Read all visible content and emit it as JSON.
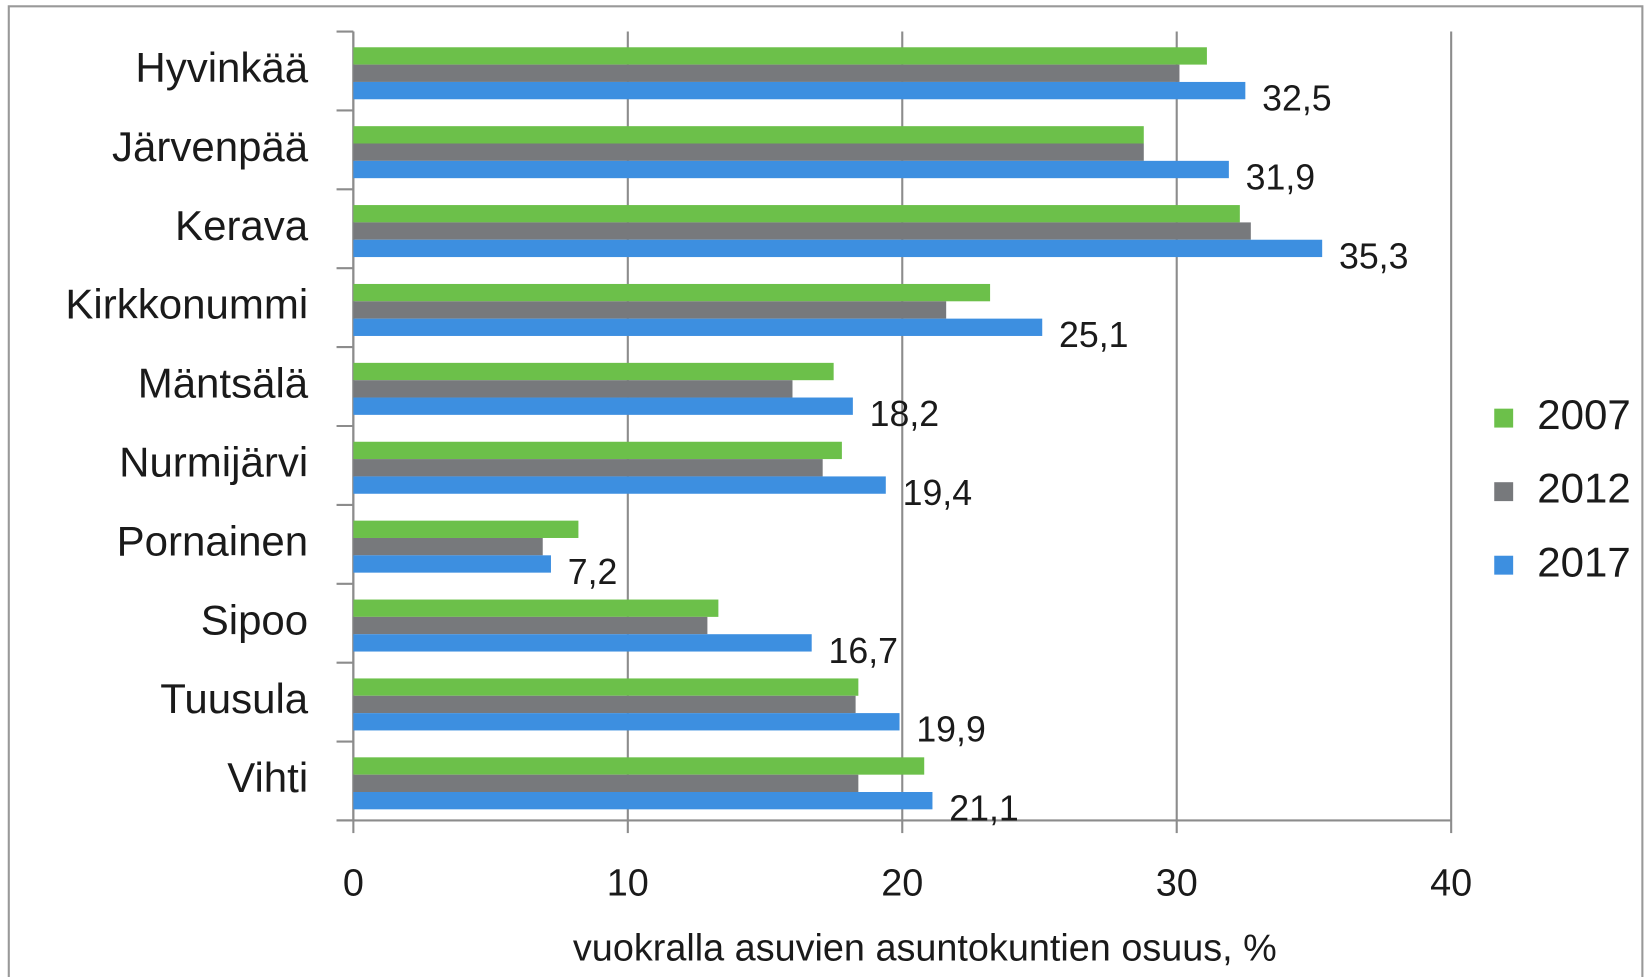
{
  "chart_data": {
    "type": "barh",
    "x_label": "vuokralla asuvien asuntokuntien osuus, %",
    "categories": [
      "Hyvinkää",
      "Järvenpää",
      "Kerava",
      "Kirkkonummi",
      "Mäntsälä",
      "Nurmijärvi",
      "Pornainen",
      "Sipoo",
      "Tuusula",
      "Vihti"
    ],
    "series": [
      {
        "name": "2007",
        "color": "#6cc04a",
        "values": [
          31.1,
          28.8,
          32.3,
          23.2,
          17.5,
          17.8,
          8.2,
          13.3,
          18.4,
          20.8
        ]
      },
      {
        "name": "2012",
        "color": "#77797c",
        "values": [
          30.1,
          28.8,
          32.7,
          21.6,
          16.0,
          17.1,
          6.9,
          12.9,
          18.3,
          18.4
        ]
      },
      {
        "name": "2017",
        "color": "#3d8fe0",
        "values": [
          32.5,
          31.9,
          35.3,
          25.1,
          18.2,
          19.4,
          7.2,
          16.7,
          19.9,
          21.1
        ],
        "value_labels": [
          "32,5",
          "31,9",
          "35,3",
          "25,1",
          "18,2",
          "19,4",
          "7,2",
          "16,7",
          "19,9",
          "21,1"
        ]
      }
    ],
    "xlim": [
      0,
      40
    ],
    "xticks": [
      0,
      10,
      20,
      30,
      40
    ],
    "grid": true,
    "legend": "right"
  }
}
